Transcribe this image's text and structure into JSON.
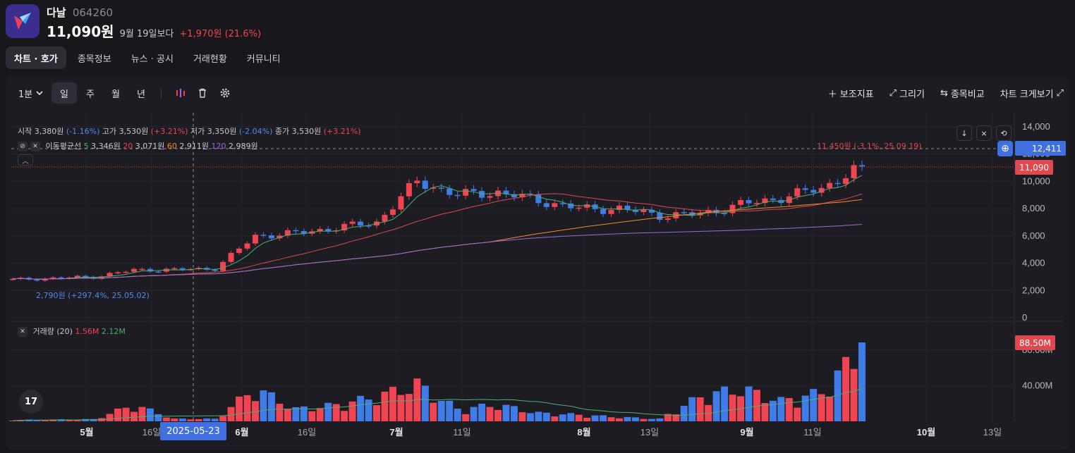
{
  "stock": {
    "name": "다날",
    "code": "064260",
    "price": "11,090원",
    "since": "9월 19일보다",
    "change": "+1,970원 (21.6%)"
  },
  "tabs": [
    "차트 · 호가",
    "종목정보",
    "뉴스 · 공시",
    "거래현황",
    "커뮤니티"
  ],
  "toolbar": {
    "interval": "1분",
    "periods": [
      "일",
      "주",
      "월",
      "년"
    ],
    "right": [
      "보조지표",
      "그리기",
      "종목비교",
      "차트 크게보기"
    ]
  },
  "ohlc_legend": {
    "open_label": "시작",
    "open": "3,380원",
    "open_pct": "(-1.16%)",
    "high_label": "고가",
    "high": "3,530원",
    "high_pct": "(+3.21%)",
    "low_label": "저가",
    "low": "3,350원",
    "low_pct": "(-2.04%)",
    "close_label": "종가",
    "close": "3,530원",
    "close_pct": "(+3.21%)"
  },
  "ma_legend": {
    "label": "이동평균선",
    "p5": "5",
    "v5": "3,346원",
    "p20": "20",
    "v20": "3,071원",
    "p60": "60",
    "v60": "2,911원",
    "p120": "120",
    "v120": "2,989원"
  },
  "volume_legend": {
    "label": "거래량 (20)",
    "v1": "1.56M",
    "v2": "2.12M"
  },
  "annotations": {
    "high_note": "11,450원 (-3.1%, 25.09.19)",
    "low_note": "2,790원 (+297.4%, 25.05.02)"
  },
  "price_axis": [
    "14,000",
    "12,000",
    "10,000",
    "8,000",
    "6,000",
    "4,000",
    "2,000",
    "0"
  ],
  "price_tags": {
    "crosshair": "12,411",
    "last": "11,090"
  },
  "volume_axis": [
    "80.00M",
    "40.00M"
  ],
  "volume_tag": "88.50M",
  "x_axis": [
    "5월",
    "16일",
    "6월",
    "16일",
    "7월",
    "11일",
    "8월",
    "13일",
    "9월",
    "11일",
    "10월",
    "13일"
  ],
  "crosshair_date": "2025-05-23",
  "tv_logo": "17",
  "colors": {
    "up": "#f04452",
    "down": "#3f7ce8",
    "ma5": "#4caf72",
    "ma20": "#e0484f",
    "ma60": "#f08c2a",
    "ma120": "#9b6bd8",
    "accent": "#3f6fe0"
  },
  "chart_data": {
    "type": "candlestick",
    "x": [
      "2025-05-02",
      "2025-05-07",
      "2025-05-13",
      "2025-05-16",
      "2025-05-23",
      "2025-06-02",
      "2025-06-09",
      "2025-06-16",
      "2025-06-23",
      "2025-07-01",
      "2025-07-08",
      "2025-07-14",
      "2025-07-21",
      "2025-07-28",
      "2025-08-04",
      "2025-08-11",
      "2025-08-18",
      "2025-08-25",
      "2025-09-01",
      "2025-09-08",
      "2025-09-15",
      "2025-09-22"
    ],
    "close": [
      2790,
      2900,
      3000,
      3500,
      3530,
      3600,
      6000,
      6200,
      6600,
      7000,
      10000,
      9000,
      9200,
      8600,
      8000,
      8000,
      7500,
      7600,
      8300,
      8800,
      9500,
      11090
    ],
    "volume_m": [
      1.5,
      2.0,
      2.5,
      20.0,
      3.0,
      3.0,
      40.0,
      15.0,
      20.0,
      30.0,
      45.0,
      15.0,
      20.0,
      10.0,
      8.0,
      5.0,
      3.0,
      30.0,
      40.0,
      25.0,
      35.0,
      88.5
    ],
    "ylim": [
      0,
      14000
    ],
    "volume_ylim": [
      0,
      88.5
    ]
  }
}
